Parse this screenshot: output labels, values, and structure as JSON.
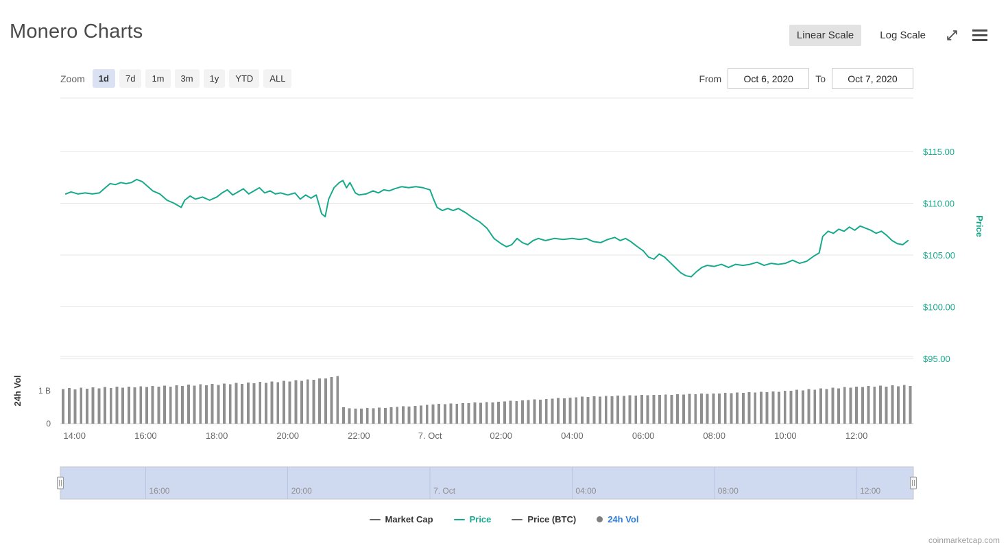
{
  "page": {
    "title": "Monero Charts",
    "watermark": "coinmarketcap.com"
  },
  "scale_toggle": {
    "linear": "Linear Scale",
    "log": "Log Scale"
  },
  "icons": {
    "expand": "diagonal-expand-arrows",
    "menu": "hamburger"
  },
  "toolbar": {
    "zoom_label": "Zoom",
    "zoom_buttons": [
      {
        "label": "1d",
        "selected": true
      },
      {
        "label": "7d",
        "selected": false
      },
      {
        "label": "1m",
        "selected": false
      },
      {
        "label": "3m",
        "selected": false
      },
      {
        "label": "1y",
        "selected": false
      },
      {
        "label": "YTD",
        "selected": false
      },
      {
        "label": "ALL",
        "selected": false
      }
    ],
    "from_label": "From",
    "from_value": "Oct 6, 2020",
    "to_label": "To",
    "to_value": "Oct 7, 2020"
  },
  "legend": [
    {
      "label": "Market Cap",
      "marker": "line",
      "color": "#666666",
      "text_color": "#333333"
    },
    {
      "label": "Price",
      "marker": "line",
      "color": "#17a98c",
      "text_color": "#17a98c"
    },
    {
      "label": "Price (BTC)",
      "marker": "line",
      "color": "#666666",
      "text_color": "#333333"
    },
    {
      "label": "24h Vol",
      "marker": "circle",
      "color": "#7f7f7f",
      "text_color": "#2f7ed8"
    }
  ],
  "chart_data": {
    "type": "line",
    "title": "Monero Charts",
    "x_axis": {
      "range_hours": [
        13.6,
        37.6
      ],
      "tick_labels": [
        {
          "hour": 14,
          "label": "14:00"
        },
        {
          "hour": 16,
          "label": "16:00"
        },
        {
          "hour": 18,
          "label": "18:00"
        },
        {
          "hour": 20,
          "label": "20:00"
        },
        {
          "hour": 22,
          "label": "22:00"
        },
        {
          "hour": 24,
          "label": "7. Oct"
        },
        {
          "hour": 26,
          "label": "02:00"
        },
        {
          "hour": 28,
          "label": "04:00"
        },
        {
          "hour": 30,
          "label": "06:00"
        },
        {
          "hour": 32,
          "label": "08:00"
        },
        {
          "hour": 34,
          "label": "10:00"
        },
        {
          "hour": 36,
          "label": "12:00"
        }
      ]
    },
    "series": [
      {
        "name": "Price",
        "type": "line",
        "color": "#17a98c",
        "axis_label": "Price",
        "y_range": [
          95,
          120
        ],
        "y_ticks": [
          {
            "v": 95,
            "label": "$95.00"
          },
          {
            "v": 100,
            "label": "$100.00"
          },
          {
            "v": 105,
            "label": "$105.00"
          },
          {
            "v": 110,
            "label": "$110.00"
          },
          {
            "v": 115,
            "label": "$115.00"
          }
        ],
        "x_hours": [
          13.75,
          13.9,
          14.1,
          14.3,
          14.5,
          14.7,
          14.9,
          15.0,
          15.15,
          15.3,
          15.45,
          15.6,
          15.75,
          15.9,
          16.0,
          16.2,
          16.4,
          16.6,
          16.8,
          17.0,
          17.1,
          17.25,
          17.4,
          17.6,
          17.8,
          18.0,
          18.15,
          18.3,
          18.45,
          18.6,
          18.75,
          18.9,
          19.05,
          19.2,
          19.35,
          19.5,
          19.65,
          19.8,
          20.0,
          20.2,
          20.35,
          20.5,
          20.65,
          20.8,
          20.95,
          21.05,
          21.15,
          21.3,
          21.45,
          21.55,
          21.65,
          21.75,
          21.9,
          22.0,
          22.2,
          22.4,
          22.55,
          22.7,
          22.85,
          23.0,
          23.2,
          23.4,
          23.6,
          23.8,
          24.0,
          24.1,
          24.2,
          24.35,
          24.5,
          24.65,
          24.8,
          25.0,
          25.2,
          25.4,
          25.6,
          25.8,
          26.0,
          26.15,
          26.3,
          26.45,
          26.6,
          26.75,
          26.9,
          27.05,
          27.25,
          27.5,
          27.75,
          28.0,
          28.2,
          28.4,
          28.6,
          28.8,
          29.0,
          29.2,
          29.35,
          29.5,
          29.65,
          29.8,
          30.0,
          30.15,
          30.3,
          30.45,
          30.6,
          30.75,
          30.9,
          31.05,
          31.2,
          31.35,
          31.5,
          31.65,
          31.8,
          32.0,
          32.2,
          32.4,
          32.6,
          32.8,
          33.0,
          33.2,
          33.4,
          33.6,
          33.8,
          34.0,
          34.2,
          34.4,
          34.6,
          34.8,
          34.95,
          35.05,
          35.2,
          35.35,
          35.5,
          35.65,
          35.8,
          35.95,
          36.1,
          36.25,
          36.4,
          36.55,
          36.7,
          36.85,
          37.0,
          37.15,
          37.3,
          37.45
        ],
        "values_usd": [
          110.9,
          111.1,
          110.9,
          111.0,
          110.9,
          111.0,
          111.6,
          111.9,
          111.8,
          112.0,
          111.9,
          112.0,
          112.3,
          112.1,
          111.8,
          111.2,
          110.9,
          110.3,
          110.0,
          109.6,
          110.3,
          110.7,
          110.4,
          110.6,
          110.3,
          110.6,
          111.0,
          111.3,
          110.8,
          111.1,
          111.4,
          110.9,
          111.2,
          111.5,
          111.0,
          111.2,
          110.9,
          111.0,
          110.8,
          111.0,
          110.4,
          110.8,
          110.5,
          110.8,
          109.0,
          108.7,
          110.4,
          111.5,
          112.0,
          112.2,
          111.5,
          112.0,
          111.0,
          110.8,
          110.9,
          111.2,
          111.0,
          111.3,
          111.2,
          111.4,
          111.6,
          111.5,
          111.6,
          111.5,
          111.3,
          110.4,
          109.6,
          109.3,
          109.5,
          109.3,
          109.5,
          109.1,
          108.6,
          108.2,
          107.6,
          106.6,
          106.1,
          105.8,
          106.0,
          106.6,
          106.2,
          106.0,
          106.4,
          106.6,
          106.4,
          106.6,
          106.5,
          106.6,
          106.5,
          106.6,
          106.3,
          106.2,
          106.5,
          106.7,
          106.4,
          106.6,
          106.3,
          105.9,
          105.4,
          104.8,
          104.6,
          105.1,
          104.8,
          104.3,
          103.8,
          103.3,
          103.0,
          102.9,
          103.4,
          103.8,
          104.0,
          103.9,
          104.1,
          103.8,
          104.1,
          104.0,
          104.1,
          104.3,
          104.0,
          104.2,
          104.1,
          104.2,
          104.5,
          104.2,
          104.4,
          104.9,
          105.2,
          106.8,
          107.3,
          107.1,
          107.5,
          107.3,
          107.7,
          107.4,
          107.8,
          107.6,
          107.4,
          107.1,
          107.3,
          106.9,
          106.4,
          106.1,
          106.0,
          106.4
        ]
      },
      {
        "name": "24h Vol",
        "type": "bar",
        "color": "#8f8f8f",
        "axis_label": "24h Vol",
        "y_range": [
          0,
          2
        ],
        "y_ticks": [
          {
            "v": 0,
            "label": "0"
          },
          {
            "v": 1,
            "label": "1 B"
          }
        ],
        "values_billions": [
          1.05,
          1.08,
          1.04,
          1.09,
          1.06,
          1.1,
          1.07,
          1.11,
          1.08,
          1.12,
          1.09,
          1.13,
          1.1,
          1.14,
          1.11,
          1.15,
          1.12,
          1.16,
          1.13,
          1.17,
          1.15,
          1.19,
          1.16,
          1.2,
          1.17,
          1.21,
          1.18,
          1.22,
          1.2,
          1.24,
          1.21,
          1.25,
          1.23,
          1.27,
          1.24,
          1.28,
          1.26,
          1.3,
          1.28,
          1.32,
          1.3,
          1.34,
          1.33,
          1.37,
          1.38,
          1.42,
          1.45,
          0.5,
          0.47,
          0.46,
          0.46,
          0.48,
          0.47,
          0.49,
          0.48,
          0.5,
          0.51,
          0.53,
          0.52,
          0.54,
          0.55,
          0.57,
          0.58,
          0.6,
          0.59,
          0.61,
          0.6,
          0.62,
          0.63,
          0.65,
          0.64,
          0.66,
          0.65,
          0.67,
          0.68,
          0.7,
          0.69,
          0.71,
          0.72,
          0.74,
          0.73,
          0.75,
          0.76,
          0.78,
          0.77,
          0.79,
          0.8,
          0.82,
          0.81,
          0.83,
          0.82,
          0.84,
          0.83,
          0.85,
          0.84,
          0.86,
          0.85,
          0.87,
          0.86,
          0.88,
          0.87,
          0.89,
          0.88,
          0.9,
          0.89,
          0.91,
          0.9,
          0.92,
          0.91,
          0.92,
          0.92,
          0.94,
          0.93,
          0.95,
          0.94,
          0.96,
          0.95,
          0.97,
          0.96,
          0.98,
          0.97,
          1.0,
          1.0,
          1.03,
          1.01,
          1.05,
          1.03,
          1.07,
          1.05,
          1.09,
          1.07,
          1.11,
          1.09,
          1.13,
          1.11,
          1.15,
          1.12,
          1.16,
          1.13,
          1.17,
          1.14,
          1.18,
          1.15
        ]
      }
    ],
    "navigator": {
      "tick_labels": [
        {
          "hour": 16,
          "label": "16:00"
        },
        {
          "hour": 20,
          "label": "20:00"
        },
        {
          "hour": 24,
          "label": "7. Oct"
        },
        {
          "hour": 28,
          "label": "04:00"
        },
        {
          "hour": 32,
          "label": "08:00"
        },
        {
          "hour": 36,
          "label": "12:00"
        }
      ]
    }
  }
}
